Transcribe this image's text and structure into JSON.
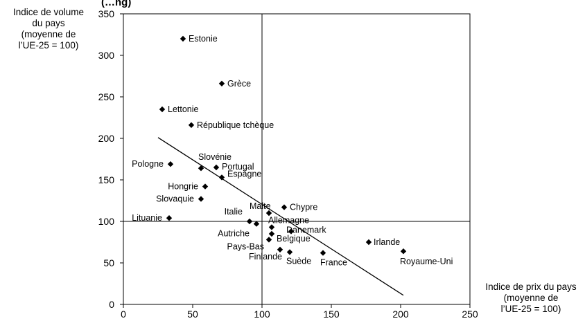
{
  "header_fragment": "(…ng)",
  "chart_data": {
    "type": "scatter",
    "xlabel": [
      "Indice de prix du pays",
      "(moyenne de",
      "l’UE-25 = 100)"
    ],
    "ylabel": [
      "Indice de volume",
      "du pays",
      "(moyenne de",
      "l’UE-25 = 100)"
    ],
    "xlim": [
      0,
      250
    ],
    "ylim": [
      0,
      350
    ],
    "xticks": [
      0,
      50,
      100,
      150,
      200,
      250
    ],
    "yticks": [
      0,
      50,
      100,
      150,
      200,
      250,
      300,
      350
    ],
    "reference_lines": {
      "x": 100,
      "y": 100
    },
    "trendline": {
      "x1": 25,
      "y1": 201,
      "x2": 202,
      "y2": 11
    },
    "points": [
      {
        "label": "Estonie",
        "x": 43,
        "y": 320
      },
      {
        "label": "Grèce",
        "x": 71,
        "y": 266
      },
      {
        "label": "Lettonie",
        "x": 28,
        "y": 235
      },
      {
        "label": "République tchèque",
        "x": 49,
        "y": 216
      },
      {
        "label": "Pologne",
        "x": 34,
        "y": 169
      },
      {
        "label": "Slovénie",
        "x": 56,
        "y": 164
      },
      {
        "label": "Portugal",
        "x": 67,
        "y": 165
      },
      {
        "label": "Espagne",
        "x": 71,
        "y": 153
      },
      {
        "label": "Hongrie",
        "x": 59,
        "y": 142
      },
      {
        "label": "Slovaquie",
        "x": 56,
        "y": 127
      },
      {
        "label": "Lituanie",
        "x": 33,
        "y": 104
      },
      {
        "label": "Malte",
        "x": 105,
        "y": 110
      },
      {
        "label": "Chypre",
        "x": 116,
        "y": 117
      },
      {
        "label": "Italie",
        "x": 91,
        "y": 100
      },
      {
        "label": "Allemagne",
        "x": 107,
        "y": 93
      },
      {
        "label": "Autriche",
        "x": 96,
        "y": 97
      },
      {
        "label": "Danemark",
        "x": 121,
        "y": 88
      },
      {
        "label": "Belgique",
        "x": 107,
        "y": 85
      },
      {
        "label": "Pays-Bas",
        "x": 105,
        "y": 78
      },
      {
        "label": "Finlande",
        "x": 113,
        "y": 66
      },
      {
        "label": "Suède",
        "x": 120,
        "y": 63
      },
      {
        "label": "France",
        "x": 144,
        "y": 62
      },
      {
        "label": "Irlande",
        "x": 177,
        "y": 75
      },
      {
        "label": "Royaume-Uni",
        "x": 202,
        "y": 64
      }
    ]
  }
}
